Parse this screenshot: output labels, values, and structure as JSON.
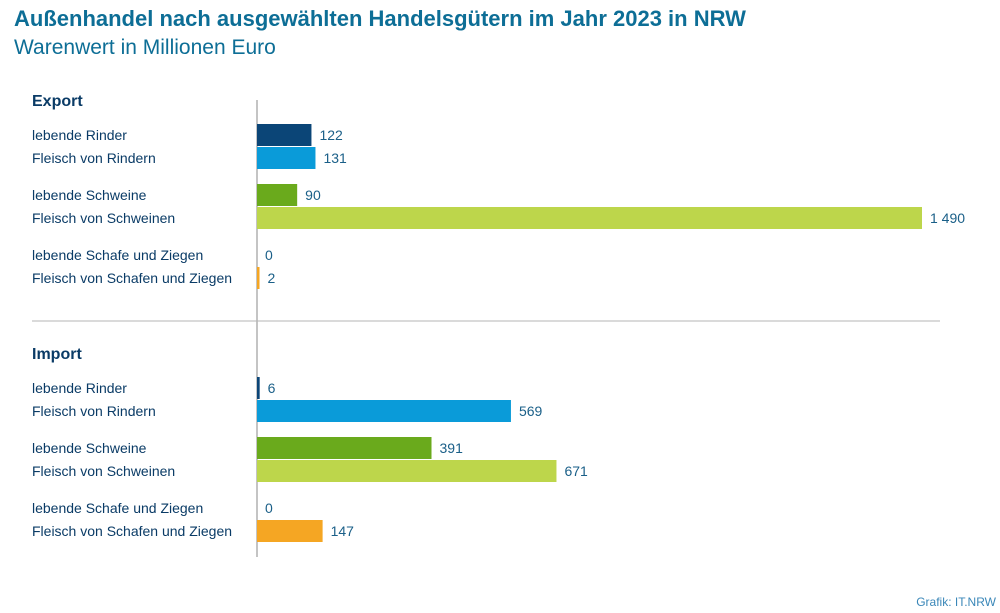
{
  "title": "Außenhandel nach ausgewählten Handelsgütern im Jahr 2023 in NRW",
  "subtitle": "Warenwert in Millionen Euro",
  "source": "Grafik: IT.NRW",
  "chart_data": {
    "type": "bar",
    "orientation": "horizontal",
    "title": "Außenhandel nach ausgewählten Handelsgütern im Jahr 2023 in NRW",
    "subtitle": "Warenwert in Millionen Euro",
    "xlim": [
      0,
      1490
    ],
    "grid": false,
    "colors": {
      "lebende Rinder": "#0b4577",
      "Fleisch von Rindern": "#0a9bd9",
      "lebende Schweine": "#6aaa1c",
      "Fleisch von Schweinen": "#bdd64b",
      "lebende Schafe und Ziegen": "#e89a10",
      "Fleisch von Schafen und Ziegen": "#f5a623"
    },
    "groups": [
      {
        "name": "Export",
        "items": [
          {
            "label": "lebende Rinder",
            "value": 122,
            "display": "122"
          },
          {
            "label": "Fleisch von Rindern",
            "value": 131,
            "display": "131"
          },
          {
            "label": "lebende Schweine",
            "value": 90,
            "display": "90"
          },
          {
            "label": "Fleisch von Schweinen",
            "value": 1490,
            "display": "1 490"
          },
          {
            "label": "lebende Schafe und Ziegen",
            "value": 0,
            "display": "0"
          },
          {
            "label": "Fleisch von Schafen und Ziegen",
            "value": 2,
            "display": "2"
          }
        ]
      },
      {
        "name": "Import",
        "items": [
          {
            "label": "lebende Rinder",
            "value": 6,
            "display": "6"
          },
          {
            "label": "Fleisch von Rindern",
            "value": 569,
            "display": "569"
          },
          {
            "label": "lebende Schweine",
            "value": 391,
            "display": "391"
          },
          {
            "label": "Fleisch von Schweinen",
            "value": 671,
            "display": "671"
          },
          {
            "label": "lebende Schafe und Ziegen",
            "value": 0,
            "display": "0"
          },
          {
            "label": "Fleisch von Schafen und Ziegen",
            "value": 147,
            "display": "147"
          }
        ]
      }
    ]
  }
}
